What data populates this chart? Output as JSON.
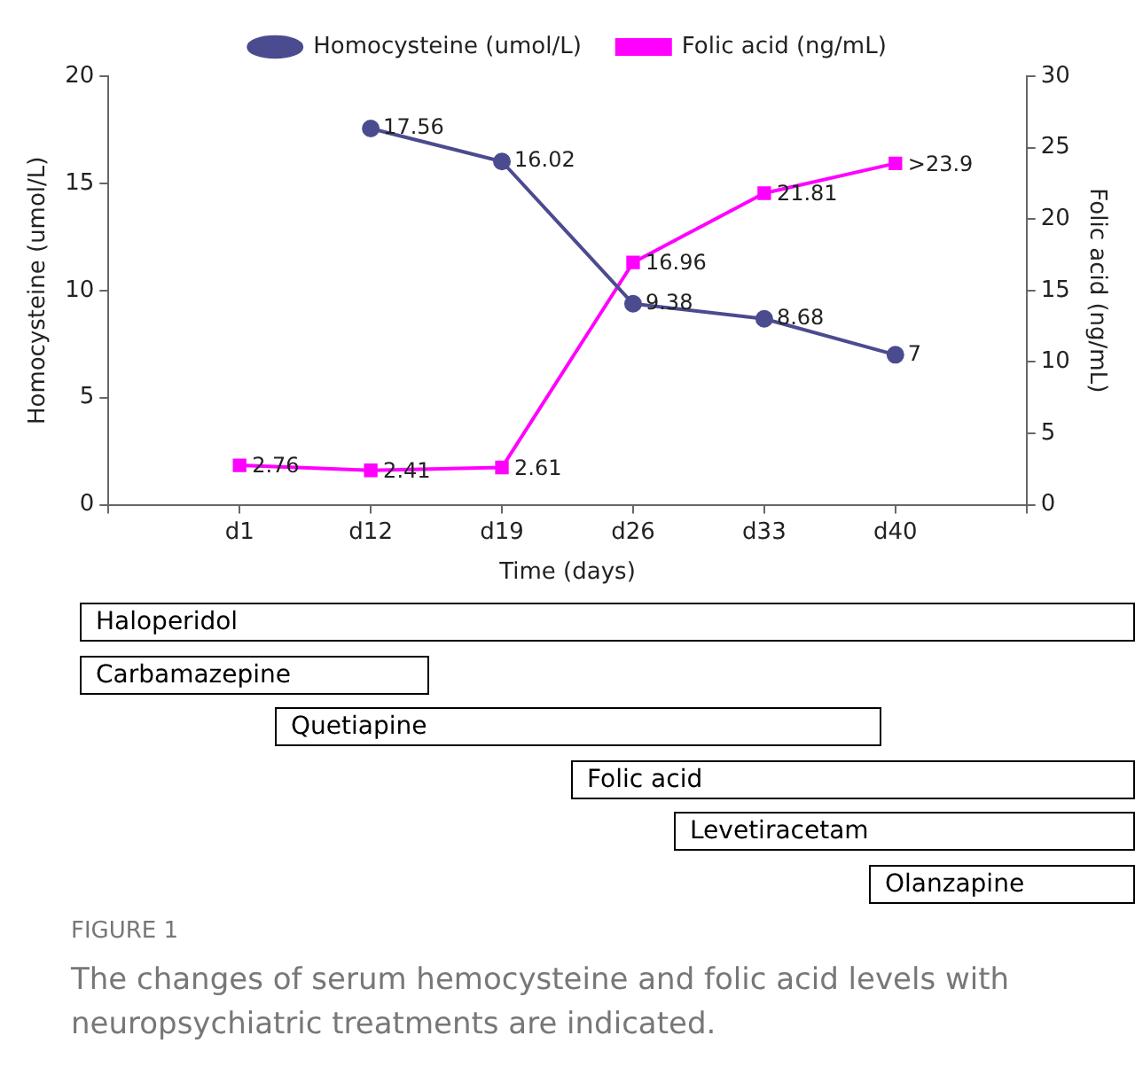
{
  "chart_data": {
    "type": "line",
    "xlabel": "Time (days)",
    "ylabel": "Homocysteine (umol/L)",
    "y2label": "Folic acid (ng/mL)",
    "categories": [
      null,
      "d1",
      "d12",
      "d19",
      "d26",
      "d33",
      "d40",
      null
    ],
    "series": [
      {
        "name": "Homocysteine (umol/L)",
        "color": "#4b4b8f",
        "marker": "circle",
        "values": [
          null,
          null,
          17.56,
          16.02,
          9.38,
          8.68,
          7,
          null
        ],
        "value_labels": [
          null,
          null,
          "17.56",
          "16.02",
          "9.38",
          "8.68",
          "7",
          null
        ]
      },
      {
        "name": "Folic acid (ng/mL)",
        "color": "#ff00ff",
        "marker": "square",
        "axis": "y2",
        "values": [
          null,
          2.76,
          2.41,
          2.61,
          16.96,
          21.81,
          23.9,
          null
        ],
        "value_labels": [
          null,
          "2.76",
          "2.41",
          "2.61",
          "16.96",
          "21.81",
          ">23.9",
          null
        ]
      }
    ],
    "ylim": [
      0,
      20
    ],
    "yticks": [
      0,
      5,
      10,
      15,
      20
    ],
    "y2lim": [
      0,
      30
    ],
    "y2ticks": [
      0,
      5,
      10,
      15,
      20,
      25,
      30
    ],
    "grid": false,
    "legend": "top",
    "line_style": "solid",
    "annotations": [
      "Haloperidol",
      "Carbamazepine",
      "Quetiapine",
      "Folic acid",
      "Levetiracetam",
      "Olanzapine",
      "FIGURE 1",
      "The changes of serum hemocysteine and folic acid levels with neuropsychiatric treatments are indicated."
    ]
  }
}
